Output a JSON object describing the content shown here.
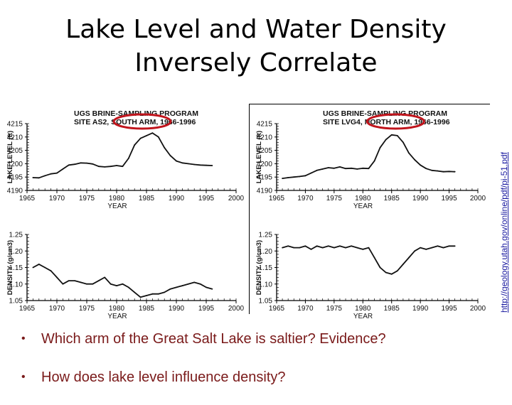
{
  "title": {
    "line1": "Lake Level and Water Density",
    "line2": "Inversely Correlate"
  },
  "source_url": "http://geology.utah.gov/online/pdf/pi-51.pdf",
  "bullets": [
    "Which arm of the Great Salt Lake is saltier?  Evidence?",
    "How does lake level influence density?"
  ],
  "colors": {
    "highlight_circle": "#c0141c",
    "text_bullets": "#7a1a1a",
    "line": "#111111"
  },
  "chart_data": [
    {
      "type": "line",
      "title": "UGS BRINE-SAMPLING PROGRAM",
      "subtitle": "SITE AS2, SOUTH ARM, 1966-1996",
      "highlighted_text": "SOUTH ARM,",
      "xlabel": "YEAR",
      "ylabel": "LAKE LEVEL (ft)",
      "xlim": [
        1965,
        2000
      ],
      "ylim": [
        4190,
        4215
      ],
      "xticks": [
        "1965",
        "1970",
        "1975",
        "1980",
        "1985",
        "1990",
        "1995",
        "2000"
      ],
      "yticks": [
        "4190",
        "4195",
        "4200",
        "4205",
        "4210",
        "4215"
      ],
      "grid": false,
      "x": [
        1966,
        1967,
        1968,
        1969,
        1970,
        1971,
        1972,
        1973,
        1974,
        1975,
        1976,
        1977,
        1978,
        1979,
        1980,
        1981,
        1982,
        1983,
        1984,
        1985,
        1986,
        1987,
        1988,
        1989,
        1990,
        1991,
        1992,
        1993,
        1994,
        1995,
        1996
      ],
      "values": [
        4194.8,
        4194.7,
        4195.5,
        4196.2,
        4196.5,
        4198,
        4199.5,
        4199.8,
        4200.3,
        4200.2,
        4199.9,
        4199,
        4198.8,
        4199,
        4199.3,
        4199,
        4202,
        4207,
        4209.5,
        4210.5,
        4211.5,
        4210,
        4206,
        4203,
        4201,
        4200.3,
        4200,
        4199.7,
        4199.5,
        4199.4,
        4199.3
      ]
    },
    {
      "type": "line",
      "title": "UGS BRINE-SAMPLING PROGRAM",
      "subtitle": "SITE LVG4, NORTH ARM, 1966-1996",
      "highlighted_text": "NORTH ARM,",
      "xlabel": "YEAR",
      "ylabel": "LAKE LEVEL (ft)",
      "xlim": [
        1965,
        2000
      ],
      "ylim": [
        4190,
        4215
      ],
      "xticks": [
        "1965",
        "1970",
        "1975",
        "1980",
        "1985",
        "1990",
        "1995",
        "2000"
      ],
      "yticks": [
        "4190",
        "4195",
        "4200",
        "4205",
        "4210",
        "4215"
      ],
      "grid": false,
      "x": [
        1966,
        1967,
        1968,
        1969,
        1970,
        1971,
        1972,
        1973,
        1974,
        1975,
        1976,
        1977,
        1978,
        1979,
        1980,
        1981,
        1982,
        1983,
        1984,
        1985,
        1986,
        1987,
        1988,
        1989,
        1990,
        1991,
        1992,
        1993,
        1994,
        1995,
        1996
      ],
      "values": [
        4194.5,
        4194.8,
        4195,
        4195.2,
        4195.5,
        4196.5,
        4197.5,
        4198,
        4198.5,
        4198.3,
        4198.8,
        4198.2,
        4198.3,
        4198,
        4198.3,
        4198.2,
        4201,
        4206,
        4209,
        4210.8,
        4210.5,
        4208,
        4204,
        4201.5,
        4199.5,
        4198.2,
        4197.5,
        4197.3,
        4197,
        4197.1,
        4197
      ]
    },
    {
      "type": "line",
      "xlabel": "YEAR",
      "ylabel": "DENSITY (g/cm3)",
      "xlim": [
        1965,
        2000
      ],
      "ylim": [
        1.05,
        1.25
      ],
      "xticks": [
        "1965",
        "1970",
        "1975",
        "1980",
        "1985",
        "1990",
        "1995",
        "2000"
      ],
      "yticks": [
        "1.05",
        "1.10",
        "1.15",
        "1.20",
        "1.25"
      ],
      "grid": false,
      "x": [
        1966,
        1967,
        1968,
        1969,
        1970,
        1971,
        1972,
        1973,
        1974,
        1975,
        1976,
        1977,
        1978,
        1979,
        1980,
        1981,
        1982,
        1983,
        1984,
        1985,
        1986,
        1987,
        1988,
        1989,
        1990,
        1991,
        1992,
        1993,
        1994,
        1995,
        1996
      ],
      "values": [
        1.15,
        1.16,
        1.15,
        1.14,
        1.12,
        1.1,
        1.11,
        1.11,
        1.105,
        1.1,
        1.1,
        1.11,
        1.12,
        1.1,
        1.095,
        1.1,
        1.09,
        1.075,
        1.06,
        1.065,
        1.07,
        1.07,
        1.075,
        1.085,
        1.09,
        1.095,
        1.1,
        1.105,
        1.1,
        1.09,
        1.085
      ]
    },
    {
      "type": "line",
      "xlabel": "YEAR",
      "ylabel": "DENSITY (g/cm3)",
      "xlim": [
        1965,
        2000
      ],
      "ylim": [
        1.05,
        1.25
      ],
      "xticks": [
        "1965",
        "1970",
        "1975",
        "1980",
        "1985",
        "1990",
        "1995",
        "2000"
      ],
      "yticks": [
        "1.05",
        "1.10",
        "1.15",
        "1.20",
        "1.25"
      ],
      "grid": false,
      "x": [
        1966,
        1967,
        1968,
        1969,
        1970,
        1971,
        1972,
        1973,
        1974,
        1975,
        1976,
        1977,
        1978,
        1979,
        1980,
        1981,
        1982,
        1983,
        1984,
        1985,
        1986,
        1987,
        1988,
        1989,
        1990,
        1991,
        1992,
        1993,
        1994,
        1995,
        1996
      ],
      "values": [
        1.21,
        1.215,
        1.21,
        1.21,
        1.215,
        1.205,
        1.215,
        1.21,
        1.215,
        1.21,
        1.215,
        1.21,
        1.215,
        1.21,
        1.205,
        1.21,
        1.18,
        1.15,
        1.135,
        1.13,
        1.14,
        1.16,
        1.18,
        1.2,
        1.21,
        1.205,
        1.21,
        1.215,
        1.21,
        1.215,
        1.215
      ]
    }
  ]
}
